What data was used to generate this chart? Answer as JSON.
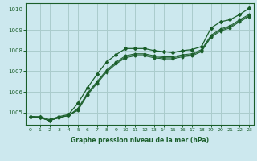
{
  "title": "Graphe pression niveau de la mer (hPa)",
  "bg_color": "#cce8ee",
  "grid_color": "#aacccc",
  "line_color": "#1a5e2a",
  "xlim": [
    -0.5,
    23.5
  ],
  "ylim": [
    1004.4,
    1010.3
  ],
  "yticks": [
    1005,
    1006,
    1007,
    1008,
    1009,
    1010
  ],
  "xticks": [
    0,
    1,
    2,
    3,
    4,
    5,
    6,
    7,
    8,
    9,
    10,
    11,
    12,
    13,
    14,
    15,
    16,
    17,
    18,
    19,
    20,
    21,
    22,
    23
  ],
  "series": [
    [
      1004.8,
      1004.8,
      1004.65,
      1004.8,
      1004.9,
      1005.45,
      1006.2,
      1006.85,
      1007.45,
      1007.8,
      1008.1,
      1008.1,
      1008.1,
      1008.0,
      1007.95,
      1007.9,
      1008.0,
      1008.05,
      1008.2,
      1009.1,
      1009.4,
      1009.5,
      1009.75,
      1010.05
    ],
    [
      1004.8,
      1004.75,
      1004.6,
      1004.75,
      1004.85,
      1005.2,
      1005.95,
      1006.5,
      1007.05,
      1007.45,
      1007.75,
      1007.85,
      1007.85,
      1007.75,
      1007.7,
      1007.7,
      1007.8,
      1007.85,
      1008.05,
      1008.75,
      1009.05,
      1009.2,
      1009.5,
      1009.75
    ],
    [
      1004.8,
      1004.75,
      1004.6,
      1004.75,
      1004.85,
      1005.15,
      1005.9,
      1006.45,
      1007.0,
      1007.4,
      1007.7,
      1007.8,
      1007.8,
      1007.7,
      1007.65,
      1007.65,
      1007.75,
      1007.8,
      1008.0,
      1008.7,
      1009.0,
      1009.15,
      1009.45,
      1009.7
    ],
    [
      1004.8,
      1004.75,
      1004.6,
      1004.75,
      1004.85,
      1005.1,
      1005.85,
      1006.4,
      1006.95,
      1007.35,
      1007.65,
      1007.75,
      1007.75,
      1007.65,
      1007.6,
      1007.6,
      1007.7,
      1007.75,
      1007.95,
      1008.65,
      1008.95,
      1009.1,
      1009.4,
      1009.65
    ]
  ]
}
